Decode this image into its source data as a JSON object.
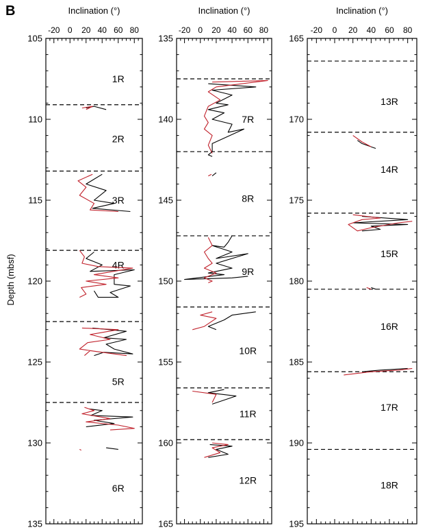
{
  "figure_label": "B",
  "colors": {
    "black_series": "#000000",
    "red_series": "#c0202a",
    "frame": "#000000"
  },
  "chart_data": [
    {
      "type": "line",
      "xlabel": "Inclination (°)",
      "ylabel": "Depth (mbsf)",
      "xlim": [
        -30,
        90
      ],
      "ylim": [
        105,
        135
      ],
      "y_inverted": true,
      "xticks": [
        "-20",
        "0",
        "20",
        "40",
        "60",
        "80"
      ],
      "yticks": [
        "105",
        "110",
        "115",
        "120",
        "125",
        "130",
        "135"
      ],
      "core_boundaries": [
        109.1,
        113.2,
        118.1,
        122.5,
        127.5
      ],
      "core_labels": [
        {
          "text": "1R",
          "depth": 107.5,
          "x": 60
        },
        {
          "text": "2R",
          "depth": 111.2,
          "x": 60
        },
        {
          "text": "3R",
          "depth": 115.0,
          "x": 60
        },
        {
          "text": "4R",
          "depth": 119.0,
          "x": 60
        },
        {
          "text": "5R",
          "depth": 126.2,
          "x": 60
        },
        {
          "text": "6R",
          "depth": 132.8,
          "x": 60
        }
      ],
      "series": [
        {
          "color": "black",
          "segments": [
            [
              [
                20,
                109.3
              ],
              [
                30,
                109.2
              ],
              [
                45,
                109.4
              ]
            ],
            [
              [
                40,
                113.4
              ],
              [
                20,
                114.0
              ],
              [
                45,
                114.4
              ],
              [
                30,
                115.0
              ],
              [
                55,
                115.2
              ],
              [
                28,
                115.5
              ],
              [
                75,
                115.7
              ]
            ],
            [
              [
                30,
                118.2
              ],
              [
                20,
                118.6
              ],
              [
                40,
                119.0
              ],
              [
                25,
                119.4
              ],
              [
                80,
                119.3
              ],
              [
                55,
                119.6
              ],
              [
                55,
                120.2
              ],
              [
                75,
                120.3
              ],
              [
                50,
                120.7
              ],
              [
                60,
                121.0
              ],
              [
                35,
                121.0
              ],
              [
                30,
                120.6
              ]
            ],
            [
              [
                28,
                122.9
              ],
              [
                70,
                123.1
              ],
              [
                42,
                123.5
              ],
              [
                70,
                123.6
              ],
              [
                45,
                123.9
              ],
              [
                55,
                124.2
              ],
              [
                78,
                124.5
              ],
              [
                42,
                124.4
              ],
              [
                30,
                124.6
              ]
            ],
            [
              [
                24,
                127.9
              ],
              [
                40,
                128.0
              ],
              [
                26,
                128.3
              ],
              [
                78,
                128.4
              ],
              [
                30,
                128.6
              ],
              [
                55,
                128.8
              ],
              [
                20,
                129.0
              ]
            ],
            [
              [
                45,
                130.3
              ],
              [
                60,
                130.4
              ]
            ]
          ]
        },
        {
          "color": "red",
          "segments": [
            [
              [
                15,
                109.3
              ],
              [
                28,
                109.2
              ],
              [
                20,
                109.4
              ]
            ],
            [
              [
                28,
                113.4
              ],
              [
                10,
                113.8
              ],
              [
                20,
                114.2
              ],
              [
                12,
                114.7
              ],
              [
                30,
                115.2
              ],
              [
                25,
                115.6
              ],
              [
                60,
                115.7
              ]
            ],
            [
              [
                12,
                118.1
              ],
              [
                18,
                118.5
              ],
              [
                15,
                118.9
              ],
              [
                35,
                119.1
              ],
              [
                78,
                119.2
              ],
              [
                30,
                119.6
              ],
              [
                60,
                119.8
              ],
              [
                20,
                120.0
              ],
              [
                45,
                120.2
              ],
              [
                14,
                120.4
              ],
              [
                20,
                120.8
              ],
              [
                12,
                121.0
              ]
            ],
            [
              [
                15,
                122.9
              ],
              [
                60,
                123.0
              ],
              [
                25,
                123.3
              ],
              [
                50,
                123.6
              ],
              [
                22,
                123.8
              ],
              [
                12,
                124.2
              ],
              [
                40,
                124.4
              ],
              [
                70,
                124.6
              ],
              [
                25,
                124.3
              ],
              [
                18,
                124.6
              ]
            ],
            [
              [
                18,
                127.8
              ],
              [
                30,
                128.0
              ],
              [
                15,
                128.2
              ],
              [
                50,
                128.5
              ],
              [
                20,
                128.7
              ],
              [
                60,
                128.9
              ],
              [
                80,
                129.1
              ],
              [
                50,
                129.2
              ]
            ],
            [
              [
                12,
                130.4
              ],
              [
                14,
                130.45
              ]
            ]
          ]
        }
      ]
    },
    {
      "type": "line",
      "xlabel": "Inclination (°)",
      "xlim": [
        -30,
        90
      ],
      "ylim": [
        135,
        165
      ],
      "y_inverted": true,
      "xticks": [
        "-20",
        "0",
        "20",
        "40",
        "60",
        "80"
      ],
      "yticks": [
        "135",
        "140",
        "145",
        "150",
        "155",
        "160",
        "165"
      ],
      "core_boundaries": [
        137.5,
        142.0,
        147.2,
        151.6,
        156.6,
        159.8
      ],
      "core_labels": [
        {
          "text": "7R",
          "depth": 140.0,
          "x": 60
        },
        {
          "text": "8R",
          "depth": 144.9,
          "x": 60
        },
        {
          "text": "9R",
          "depth": 149.4,
          "x": 60
        },
        {
          "text": "10R",
          "depth": 154.3,
          "x": 60
        },
        {
          "text": "11R",
          "depth": 158.2,
          "x": 60
        },
        {
          "text": "12R",
          "depth": 162.3,
          "x": 60
        }
      ],
      "series": [
        {
          "color": "black",
          "segments": [
            [
              [
                10,
                137.8
              ],
              [
                70,
                138.0
              ],
              [
                15,
                138.2
              ],
              [
                40,
                138.5
              ],
              [
                20,
                139.0
              ],
              [
                35,
                139.1
              ],
              [
                10,
                139.4
              ],
              [
                30,
                139.6
              ],
              [
                15,
                140.0
              ],
              [
                40,
                140.3
              ],
              [
                35,
                140.8
              ],
              [
                55,
                140.6
              ],
              [
                15,
                141.5
              ],
              [
                15,
                142.0
              ],
              [
                10,
                142.2
              ],
              [
                15,
                142.3
              ]
            ],
            [
              [
                15,
                143.5
              ],
              [
                20,
                143.3
              ]
            ],
            [
              [
                40,
                147.2
              ],
              [
                35,
                147.6
              ],
              [
                30,
                147.9
              ],
              [
                15,
                147.8
              ],
              [
                40,
                148.2
              ],
              [
                20,
                148.6
              ],
              [
                60,
                148.3
              ],
              [
                20,
                148.9
              ],
              [
                40,
                149.2
              ],
              [
                10,
                149.5
              ],
              [
                30,
                149.6
              ],
              [
                -20,
                149.9
              ],
              [
                40,
                149.8
              ],
              [
                60,
                149.7
              ]
            ],
            [
              [
                70,
                151.9
              ],
              [
                40,
                152.1
              ],
              [
                30,
                152.4
              ],
              [
                10,
                152.8
              ],
              [
                20,
                153.0
              ]
            ],
            [
              [
                30,
                156.7
              ],
              [
                10,
                156.9
              ],
              [
                45,
                157.1
              ],
              [
                15,
                157.6
              ]
            ],
            [
              [
                12,
                160.1
              ],
              [
                40,
                160.2
              ],
              [
                20,
                160.4
              ],
              [
                35,
                160.7
              ],
              [
                10,
                160.9
              ]
            ]
          ]
        },
        {
          "color": "red",
          "segments": [
            [
              [
                15,
                137.7
              ],
              [
                85,
                137.6
              ],
              [
                20,
                138.0
              ],
              [
                10,
                138.3
              ],
              [
                25,
                138.8
              ],
              [
                10,
                139.2
              ],
              [
                5,
                139.8
              ],
              [
                10,
                140.2
              ],
              [
                5,
                140.6
              ],
              [
                15,
                141.0
              ],
              [
                10,
                141.6
              ],
              [
                15,
                142.1
              ]
            ],
            [
              [
                10,
                143.5
              ],
              [
                14,
                143.4
              ]
            ],
            [
              [
                10,
                147.3
              ],
              [
                15,
                147.8
              ],
              [
                5,
                148.2
              ],
              [
                10,
                148.6
              ],
              [
                15,
                148.9
              ],
              [
                5,
                149.2
              ],
              [
                20,
                149.5
              ],
              [
                5,
                149.8
              ],
              [
                15,
                150.0
              ],
              [
                10,
                150.1
              ]
            ],
            [
              [
                15,
                151.9
              ],
              [
                0,
                152.1
              ],
              [
                20,
                152.3
              ],
              [
                5,
                152.8
              ],
              [
                -10,
                153.0
              ]
            ],
            [
              [
                -10,
                156.8
              ],
              [
                20,
                157.0
              ],
              [
                15,
                157.5
              ]
            ],
            [
              [
                15,
                160.0
              ],
              [
                35,
                160.1
              ],
              [
                15,
                160.3
              ],
              [
                25,
                160.6
              ],
              [
                5,
                160.9
              ]
            ]
          ]
        }
      ]
    },
    {
      "type": "line",
      "xlabel": "Inclination (°)",
      "xlim": [
        -30,
        90
      ],
      "ylim": [
        165,
        195
      ],
      "y_inverted": true,
      "xticks": [
        "-20",
        "0",
        "20",
        "40",
        "60",
        "80"
      ],
      "yticks": [
        "165",
        "170",
        "175",
        "180",
        "185",
        "190",
        "195"
      ],
      "core_boundaries": [
        166.4,
        170.8,
        175.8,
        180.5,
        185.6,
        190.4
      ],
      "core_labels": [
        {
          "text": "13R",
          "depth": 168.9,
          "x": 60
        },
        {
          "text": "14R",
          "depth": 173.1,
          "x": 60
        },
        {
          "text": "15R",
          "depth": 178.3,
          "x": 60
        },
        {
          "text": "16R",
          "depth": 182.8,
          "x": 60
        },
        {
          "text": "17R",
          "depth": 187.8,
          "x": 60
        },
        {
          "text": "18R",
          "depth": 192.6,
          "x": 60
        }
      ],
      "series": [
        {
          "color": "black",
          "segments": [
            [
              [
                25,
                171.3
              ],
              [
                30,
                171.5
              ],
              [
                45,
                171.8
              ]
            ],
            [
              [
                30,
                176.0
              ],
              [
                80,
                176.2
              ],
              [
                20,
                176.4
              ],
              [
                80,
                176.5
              ],
              [
                40,
                176.6
              ],
              [
                50,
                176.8
              ],
              [
                30,
                176.9
              ]
            ],
            [
              [
                40,
                180.4
              ],
              [
                45,
                180.5
              ]
            ],
            [
              [
                30,
                185.6
              ],
              [
                50,
                185.5
              ],
              [
                80,
                185.4
              ]
            ]
          ]
        },
        {
          "color": "red",
          "segments": [
            [
              [
                20,
                171.0
              ],
              [
                30,
                171.4
              ],
              [
                40,
                171.7
              ]
            ],
            [
              [
                20,
                175.9
              ],
              [
                50,
                176.1
              ],
              [
                30,
                176.2
              ],
              [
                15,
                176.5
              ],
              [
                25,
                176.9
              ],
              [
                40,
                176.7
              ],
              [
                70,
                176.4
              ],
              [
                85,
                176.3
              ]
            ],
            [
              [
                35,
                180.4
              ],
              [
                40,
                180.5
              ]
            ],
            [
              [
                10,
                185.8
              ],
              [
                40,
                185.6
              ],
              [
                70,
                185.5
              ],
              [
                85,
                185.4
              ]
            ]
          ]
        }
      ]
    }
  ]
}
